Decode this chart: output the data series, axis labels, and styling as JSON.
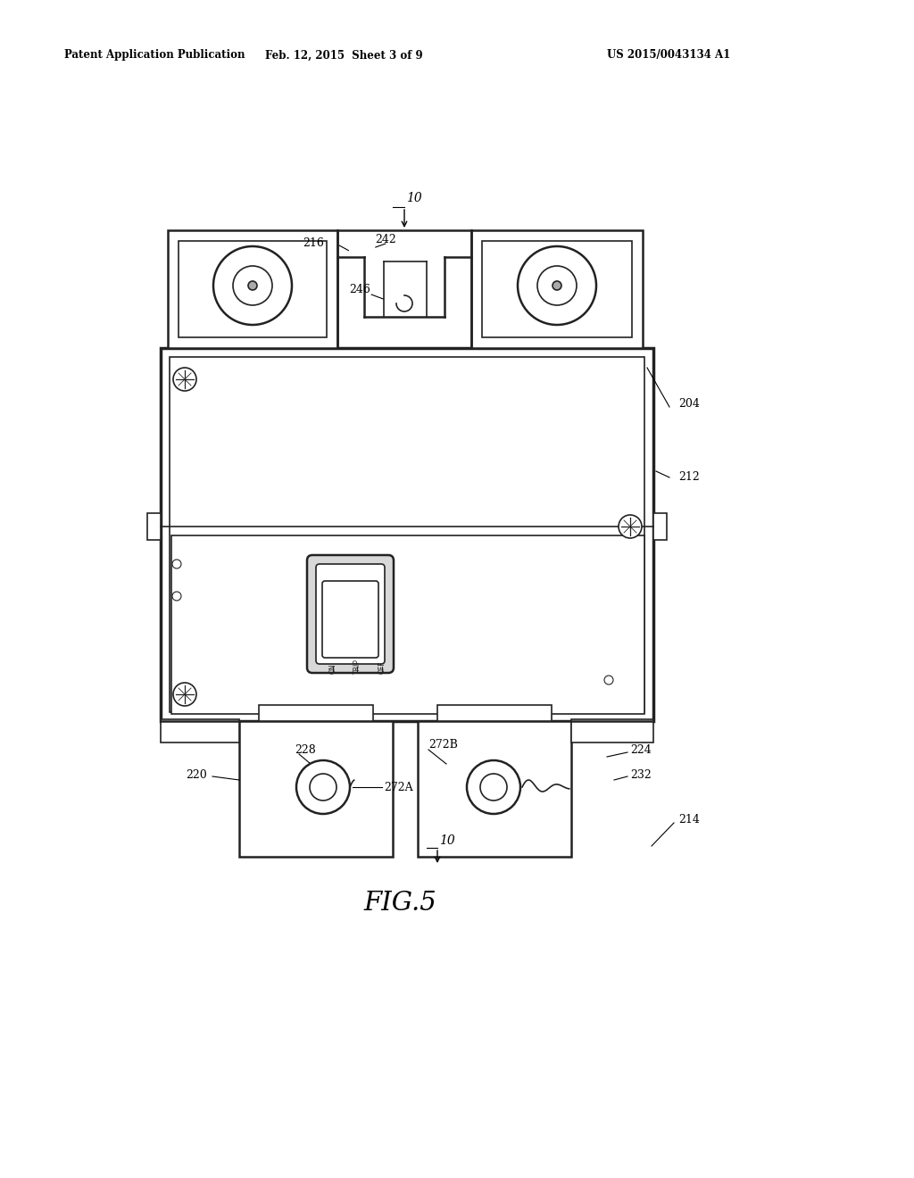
{
  "header_left": "Patent Application Publication",
  "header_mid": "Feb. 12, 2015  Sheet 3 of 9",
  "header_right": "US 2015/0043134 A1",
  "figure_label": "FIG.5",
  "bg_color": "#ffffff",
  "line_color": "#222222"
}
